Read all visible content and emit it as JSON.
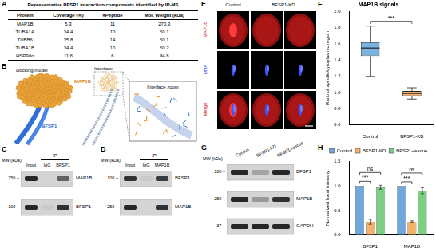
{
  "chart_data": [
    {
      "type": "box",
      "title": "MAP1B signals",
      "y_label": "Ratio of spindle/cytoplasmic region",
      "categories": [
        "Control",
        "BFSP1-KD"
      ],
      "boxes": [
        {
          "min": 1.2,
          "q1": 1.45,
          "median": 1.55,
          "q3": 1.62,
          "max": 1.82
        },
        {
          "min": 0.92,
          "q1": 0.96,
          "median": 0.99,
          "q3": 1.02,
          "max": 1.06
        }
      ],
      "colors": [
        "#7ab3e0",
        "#f7b36b"
      ],
      "ylim": [
        0.6,
        2.0
      ],
      "yticks": [
        0.6,
        0.8,
        {
          "value": 1.0,
          "label": "1.0"
        },
        1.2,
        1.4,
        1.6,
        1.8,
        {
          "value": 2.0,
          "label": "2.0"
        }
      ],
      "grid": false,
      "annotations": [
        {
          "text": "***",
          "from": "Control",
          "to": "BFSP1-KD"
        }
      ]
    },
    {
      "type": "bar",
      "y_label": "Normalized band intensity",
      "categories": [
        "BFSP1",
        "MAP1B"
      ],
      "series": [
        {
          "name": "Control",
          "color": "#6fa8dc",
          "values": [
            1,
            1
          ],
          "errors": [
            0,
            0
          ]
        },
        {
          "name": "BFSP1-KD",
          "color": "#f5b26b",
          "values": [
            0.27,
            0.27
          ],
          "errors": [
            0.05,
            0.02
          ]
        },
        {
          "name": "BFSP1-rescue",
          "color": "#7dcf86",
          "values": [
            0.97,
            0.9
          ],
          "errors": [
            0.04,
            0.06
          ]
        }
      ],
      "ylim": [
        0,
        1.5
      ],
      "yticks": [
        {
          "value": 0,
          "label": "0.0"
        },
        0.5,
        {
          "value": 1.0,
          "label": "1.0"
        },
        1.5
      ],
      "grid": false,
      "legend": "top",
      "annotations": [
        {
          "text": "***",
          "category": "BFSP1",
          "from": "Control",
          "to": "BFSP1-KD"
        },
        {
          "text": "ns",
          "category": "BFSP1",
          "from": "Control",
          "to": "BFSP1-rescue"
        },
        {
          "text": "***",
          "category": "MAP1B",
          "from": "Control",
          "to": "BFSP1-KD"
        },
        {
          "text": "ns",
          "category": "MAP1B",
          "from": "Control",
          "to": "BFSP1-rescue"
        }
      ]
    }
  ],
  "figure": {
    "panel_labels": [
      "A",
      "B",
      "C",
      "D",
      "E",
      "F",
      "G",
      "H"
    ],
    "table": {
      "title": "Representative BFSP1 interaction components identified by IP-MS",
      "header": [
        "Protein",
        "Coverage (%)",
        "#Peptide",
        "Mol. Weight (kDa)"
      ],
      "rows": [
        [
          "MAP1B",
          5.3,
          11,
          270.3
        ],
        [
          "TUBA1A",
          34.4,
          10,
          50.1
        ],
        [
          "TUBB6",
          35.8,
          14,
          50.1
        ],
        [
          "TUBA1B",
          34.4,
          10,
          50.2
        ],
        [
          "HSP90α",
          11.6,
          6,
          84.8
        ]
      ]
    },
    "docking": {
      "model": "Docking model",
      "interface": "Interface",
      "zoom": "Interface zoom",
      "ligand": "MAP1B",
      "receptor": "BFSP1"
    },
    "blot_c": {
      "mw_title": "MW (kDa)",
      "group": "IP",
      "lanes": [
        "Input",
        "IgG",
        "BFSP1"
      ],
      "rows": [
        {
          "protein": "MAP1B",
          "mw": 250
        },
        {
          "protein": "BFSP1",
          "mw": 100
        }
      ]
    },
    "blot_d": {
      "mw_title": "MW (kDa)",
      "group": "IP",
      "lanes": [
        "Input",
        "IgG",
        "MAP1B"
      ],
      "rows": [
        {
          "protein": "BFSP1",
          "mw": 100
        },
        {
          "protein": "MAP1B",
          "mw": 250
        }
      ]
    },
    "images_e": {
      "columns": [
        "Control",
        "BFSP1-KD"
      ],
      "rows": [
        "MAP1B",
        "DNA",
        "Merge"
      ]
    },
    "blot_g": {
      "mw_title": "MW (kDa)",
      "lanes": [
        "Control",
        "BFSP1-KD",
        "BFSP1-rescue"
      ],
      "rows": [
        {
          "protein": "BFSP1",
          "mw": 100
        },
        {
          "protein": "MAP1B",
          "mw": 250
        },
        {
          "protein": "GAPDH",
          "mw": 37
        }
      ]
    }
  }
}
